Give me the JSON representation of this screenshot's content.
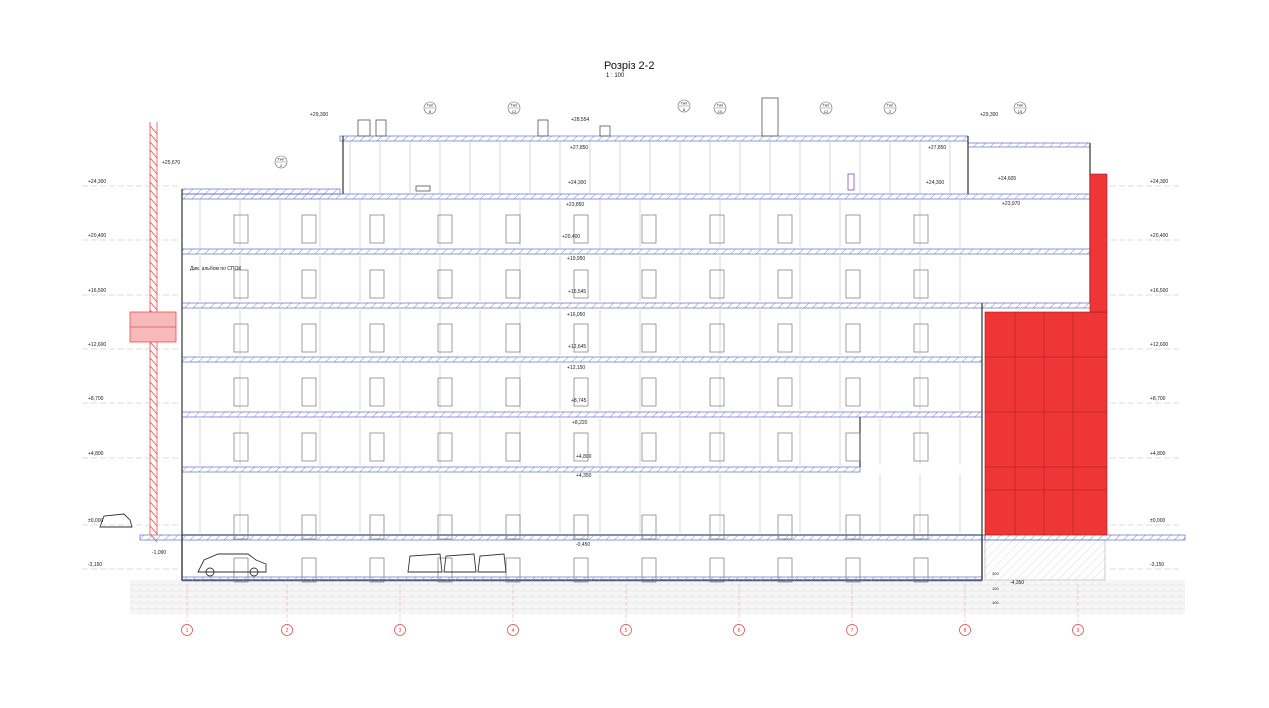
{
  "title": "Розріз 2-2",
  "scale": "1 : 100",
  "colors": {
    "accent_red": "#ef3636",
    "line": "#333333",
    "slab": "#4455c8",
    "axis": "#e04040",
    "crane": "#e85050"
  },
  "elevations_left": [
    "+24,300",
    "+20,400",
    "+16,500",
    "+12,600",
    "+8,700",
    "+4,800",
    "±0,000",
    "-3,150"
  ],
  "elevations_right": [
    "+24,300",
    "+20,400",
    "+16,500",
    "+12,600",
    "+8,700",
    "+4,800",
    "±0,000",
    "-3,150"
  ],
  "inner_marks": [
    "+28,554",
    "+27,850",
    "+24,300",
    "+23,850",
    "+20,400",
    "+19,950",
    "+16,545",
    "+16,050",
    "+12,645",
    "+12,150",
    "+8,745",
    "+8,220",
    "+4,800",
    "+4,350",
    "-0,450",
    "-1,090",
    "-4,350"
  ],
  "roof_marks": {
    "left": "+29,300",
    "right": "+29,300",
    "crane_top": "+25,670",
    "block_top": "+27,850",
    "block_level": "+24,605",
    "block_floor": "+23,970"
  },
  "type_tags": [
    {
      "label": "Тип",
      "num": "2"
    },
    {
      "label": "Тип",
      "num": "8"
    },
    {
      "label": "Тип",
      "num": "12"
    },
    {
      "label": "Тип",
      "num": "8"
    },
    {
      "label": "Тип",
      "num": "10"
    },
    {
      "label": "Тип",
      "num": "12"
    },
    {
      "label": "Тип",
      "num": "2"
    },
    {
      "label": "Тип",
      "num": "15"
    }
  ],
  "note": "Див. альбом по СПОК",
  "axes": [
    "1",
    "2",
    "3",
    "4",
    "5",
    "6",
    "7",
    "8",
    "9"
  ],
  "small_dims": [
    "300",
    "100",
    "100"
  ]
}
